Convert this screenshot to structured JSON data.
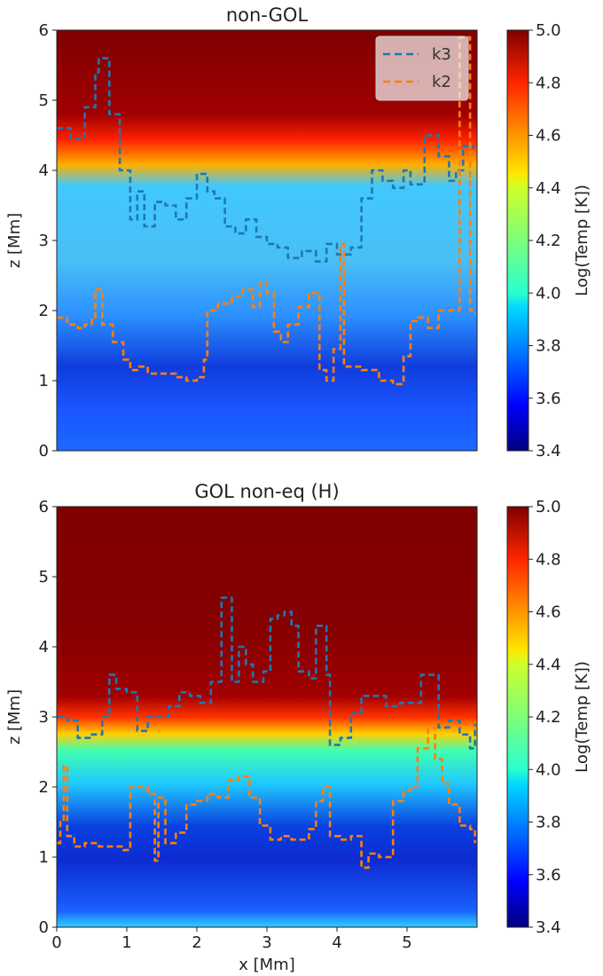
{
  "chart_data": [
    {
      "type": "heatmap",
      "title": "non-GOL",
      "xlabel": "",
      "ylabel": "z [Mm]",
      "xlim": [
        0,
        6
      ],
      "ylim": [
        0,
        6
      ],
      "y_ticks": [
        "0",
        "1",
        "2",
        "3",
        "4",
        "5",
        "6"
      ],
      "x_ticks": [],
      "colorbar": {
        "label": "Log(Temp [K])",
        "range": [
          3.4,
          5.0
        ],
        "ticks": [
          "3.4",
          "3.6",
          "3.8",
          "4.0",
          "4.2",
          "4.4",
          "4.6",
          "4.8",
          "5.0"
        ],
        "colormap": "jet"
      },
      "legend": {
        "position": "top-right",
        "entries": [
          {
            "label": "k3",
            "color": "#1f77b4",
            "style": "dashed"
          },
          {
            "label": "k2",
            "color": "#ff7f0e",
            "style": "dashed"
          }
        ]
      },
      "series": [
        {
          "name": "k3",
          "color": "#1f77b4",
          "x": [
            0.0,
            0.2,
            0.4,
            0.55,
            0.6,
            0.75,
            0.9,
            1.05,
            1.15,
            1.25,
            1.4,
            1.55,
            1.7,
            1.85,
            2.0,
            2.15,
            2.25,
            2.4,
            2.55,
            2.7,
            2.85,
            3.0,
            3.15,
            3.3,
            3.5,
            3.7,
            3.85,
            4.0,
            4.2,
            4.35,
            4.5,
            4.65,
            4.8,
            4.95,
            5.05,
            5.25,
            5.45,
            5.6,
            5.7,
            5.8,
            5.95
          ],
          "y": [
            4.6,
            4.45,
            4.9,
            5.4,
            5.6,
            4.8,
            4.0,
            3.3,
            3.7,
            3.2,
            3.55,
            3.5,
            3.3,
            3.6,
            3.95,
            3.7,
            3.6,
            3.2,
            3.1,
            3.3,
            3.05,
            2.95,
            2.9,
            2.75,
            2.85,
            2.7,
            2.95,
            2.8,
            2.9,
            3.6,
            4.0,
            3.85,
            3.75,
            4.0,
            3.8,
            4.5,
            4.2,
            3.85,
            4.0,
            4.35,
            4.3
          ]
        },
        {
          "name": "k2",
          "color": "#ff7f0e",
          "x": [
            0.0,
            0.15,
            0.3,
            0.4,
            0.5,
            0.55,
            0.65,
            0.8,
            0.95,
            1.05,
            1.15,
            1.3,
            1.5,
            1.7,
            1.85,
            2.0,
            2.1,
            2.15,
            2.3,
            2.5,
            2.65,
            2.8,
            2.9,
            3.0,
            3.1,
            3.2,
            3.3,
            3.45,
            3.6,
            3.75,
            3.85,
            3.95,
            4.05,
            4.1,
            4.2,
            4.35,
            4.45,
            4.6,
            4.8,
            4.95,
            5.05,
            5.15,
            5.3,
            5.45,
            5.6,
            5.75,
            5.9,
            5.97
          ],
          "y": [
            1.9,
            1.8,
            1.75,
            1.8,
            1.9,
            2.3,
            1.8,
            1.55,
            1.3,
            1.15,
            1.2,
            1.1,
            1.1,
            1.05,
            1.0,
            1.05,
            1.3,
            2.0,
            2.1,
            2.2,
            2.3,
            2.05,
            2.4,
            2.25,
            1.7,
            1.55,
            1.8,
            2.05,
            2.25,
            1.15,
            1.0,
            1.45,
            2.95,
            1.2,
            1.2,
            1.15,
            1.15,
            1.0,
            0.95,
            1.35,
            1.85,
            1.9,
            1.75,
            2.0,
            2.0,
            5.9,
            2.0,
            1.95
          ]
        }
      ]
    },
    {
      "type": "heatmap",
      "title": "GOL non-eq (H)",
      "xlabel": "x [Mm]",
      "ylabel": "z [Mm]",
      "xlim": [
        0,
        6
      ],
      "ylim": [
        0,
        6
      ],
      "x_ticks": [
        "0",
        "1",
        "2",
        "3",
        "4",
        "5"
      ],
      "y_ticks": [
        "0",
        "1",
        "2",
        "3",
        "4",
        "5",
        "6"
      ],
      "colorbar": {
        "label": "Log(Temp [K])",
        "range": [
          3.4,
          5.0
        ],
        "ticks": [
          "3.4",
          "3.6",
          "3.8",
          "4.0",
          "4.2",
          "4.4",
          "4.6",
          "4.8",
          "5.0"
        ],
        "colormap": "jet"
      },
      "series": [
        {
          "name": "k3",
          "color": "#1f77b4",
          "x": [
            0.0,
            0.15,
            0.3,
            0.5,
            0.65,
            0.75,
            0.85,
            1.0,
            1.15,
            1.3,
            1.45,
            1.6,
            1.75,
            1.9,
            2.05,
            2.2,
            2.35,
            2.5,
            2.6,
            2.7,
            2.8,
            2.95,
            3.05,
            3.15,
            3.25,
            3.35,
            3.45,
            3.6,
            3.7,
            3.85,
            3.9,
            4.05,
            4.2,
            4.35,
            4.55,
            4.7,
            4.9,
            5.05,
            5.2,
            5.3,
            5.45,
            5.6,
            5.75,
            5.9,
            5.97
          ],
          "y": [
            3.0,
            2.95,
            2.7,
            2.75,
            3.0,
            3.6,
            3.4,
            3.35,
            2.8,
            3.0,
            3.0,
            3.15,
            3.35,
            3.3,
            3.2,
            3.5,
            4.7,
            3.5,
            4.0,
            3.75,
            3.5,
            3.65,
            4.4,
            4.45,
            4.5,
            4.3,
            3.65,
            3.55,
            4.3,
            3.6,
            2.6,
            2.7,
            3.05,
            3.3,
            3.3,
            3.15,
            3.2,
            3.2,
            3.6,
            3.6,
            2.85,
            2.95,
            2.75,
            2.55,
            2.9
          ]
        },
        {
          "name": "k2",
          "color": "#ff7f0e",
          "x": [
            0.0,
            0.05,
            0.1,
            0.15,
            0.25,
            0.4,
            0.6,
            0.8,
            0.95,
            1.05,
            1.1,
            1.3,
            1.4,
            1.45,
            1.55,
            1.7,
            1.85,
            2.0,
            2.15,
            2.3,
            2.45,
            2.6,
            2.75,
            2.9,
            3.05,
            3.2,
            3.35,
            3.5,
            3.6,
            3.7,
            3.8,
            3.9,
            4.05,
            4.2,
            4.35,
            4.45,
            4.6,
            4.8,
            4.95,
            5.05,
            5.15,
            5.3,
            5.4,
            5.5,
            5.6,
            5.75,
            5.9,
            5.97
          ],
          "y": [
            1.2,
            1.5,
            2.3,
            1.3,
            1.15,
            1.2,
            1.15,
            1.15,
            1.1,
            2.0,
            2.0,
            1.9,
            0.95,
            1.85,
            1.2,
            1.35,
            1.75,
            1.8,
            1.9,
            1.85,
            2.1,
            2.15,
            1.85,
            1.45,
            1.25,
            1.3,
            1.25,
            1.25,
            1.4,
            1.8,
            2.0,
            1.3,
            1.25,
            1.3,
            0.85,
            1.05,
            1.0,
            1.8,
            1.95,
            2.0,
            2.55,
            2.85,
            2.4,
            2.05,
            1.75,
            1.45,
            1.4,
            1.2
          ]
        }
      ]
    }
  ]
}
